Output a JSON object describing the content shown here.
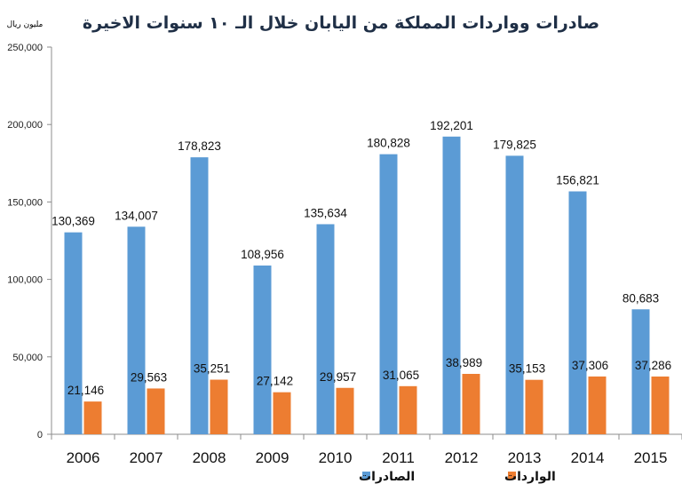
{
  "chart_data": {
    "type": "bar",
    "title": "صادرات وواردات المملكة من اليابان خلال الـ ١٠ سنوات الاخيرة",
    "ylabel": "مليون ريال",
    "xlabel": "",
    "ylim": [
      0,
      250000
    ],
    "yticks": [
      0,
      50000,
      100000,
      150000,
      200000,
      250000
    ],
    "ytick_labels": [
      "0",
      "50,000",
      "100,000",
      "150,000",
      "200,000",
      "250,000"
    ],
    "categories": [
      "2006",
      "2007",
      "2008",
      "2009",
      "2010",
      "2011",
      "2012",
      "2013",
      "2014",
      "2015"
    ],
    "series": [
      {
        "name": "الصادرات",
        "color": "#5b9bd5",
        "values": [
          130369,
          134007,
          178823,
          108956,
          135634,
          180828,
          192201,
          179825,
          156821,
          80683
        ],
        "labels": [
          "130,369",
          "134,007",
          "178,823",
          "108,956",
          "135,634",
          "180,828",
          "192,201",
          "179,825",
          "156,821",
          "80,683"
        ]
      },
      {
        "name": "الواردات",
        "color": "#ed7d31",
        "values": [
          21146,
          29563,
          35251,
          27142,
          29957,
          31065,
          38989,
          35153,
          37306,
          37286
        ],
        "labels": [
          "21,146",
          "29,563",
          "35,251",
          "27,142",
          "29,957",
          "31,065",
          "38,989",
          "35,153",
          "37,306",
          "37,286"
        ]
      }
    ],
    "grid": false,
    "legend": "bottom"
  }
}
